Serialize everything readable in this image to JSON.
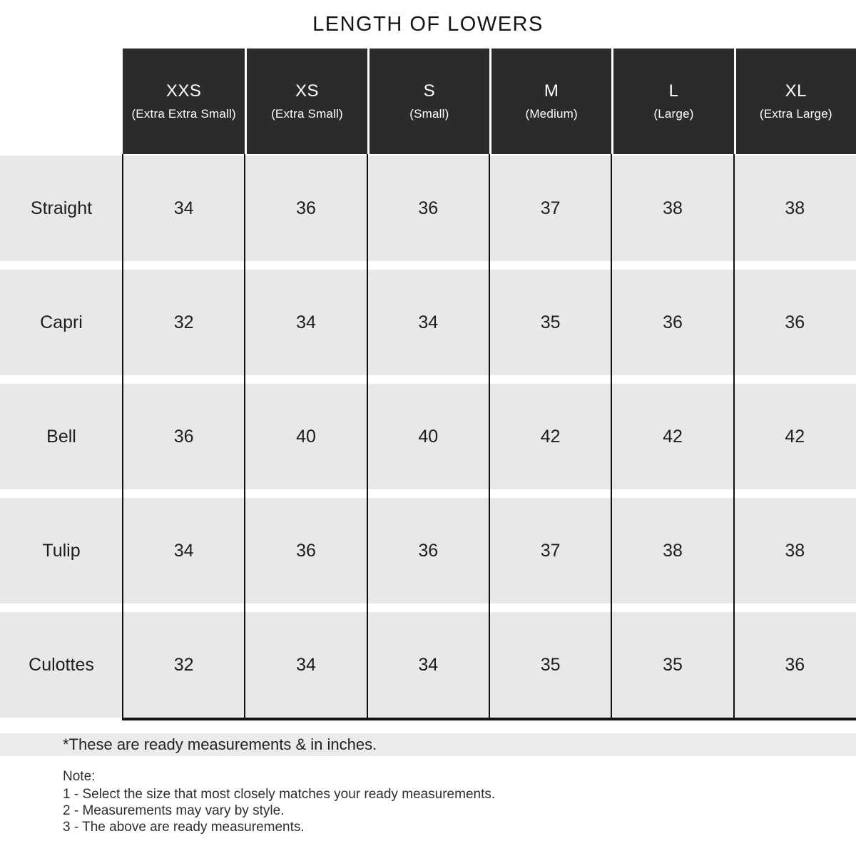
{
  "title": "LENGTH OF LOWERS",
  "table": {
    "columns": [
      {
        "size": "XXS",
        "full": "(Extra Extra Small)"
      },
      {
        "size": "XS",
        "full": "(Extra Small)"
      },
      {
        "size": "S",
        "full": "(Small)"
      },
      {
        "size": "M",
        "full": "(Medium)"
      },
      {
        "size": "L",
        "full": "(Large)"
      },
      {
        "size": "XL",
        "full": "(Extra Large)"
      }
    ],
    "rows": [
      {
        "label": "Straight",
        "values": [
          "34",
          "36",
          "36",
          "37",
          "38",
          "38"
        ]
      },
      {
        "label": "Capri",
        "values": [
          "32",
          "34",
          "34",
          "35",
          "36",
          "36"
        ]
      },
      {
        "label": "Bell",
        "values": [
          "36",
          "40",
          "40",
          "42",
          "42",
          "42"
        ]
      },
      {
        "label": "Tulip",
        "values": [
          "34",
          "36",
          "36",
          "37",
          "38",
          "38"
        ]
      },
      {
        "label": "Culottes",
        "values": [
          "32",
          "34",
          "34",
          "35",
          "35",
          "36"
        ]
      }
    ]
  },
  "footnote": "*These are ready measurements & in inches.",
  "note": {
    "heading": "Note:",
    "items": [
      "1 - Select the size that most closely matches your ready measurements.",
      "2 - Measurements may vary by style.",
      "3 - The above are ready measurements."
    ]
  },
  "units": "inches",
  "colors": {
    "header_bg": "#2b2b2b",
    "header_text": "#ffffff",
    "row_bg": "#e8e8e8",
    "footnote_bg": "#ebebeb",
    "border": "#121212"
  }
}
